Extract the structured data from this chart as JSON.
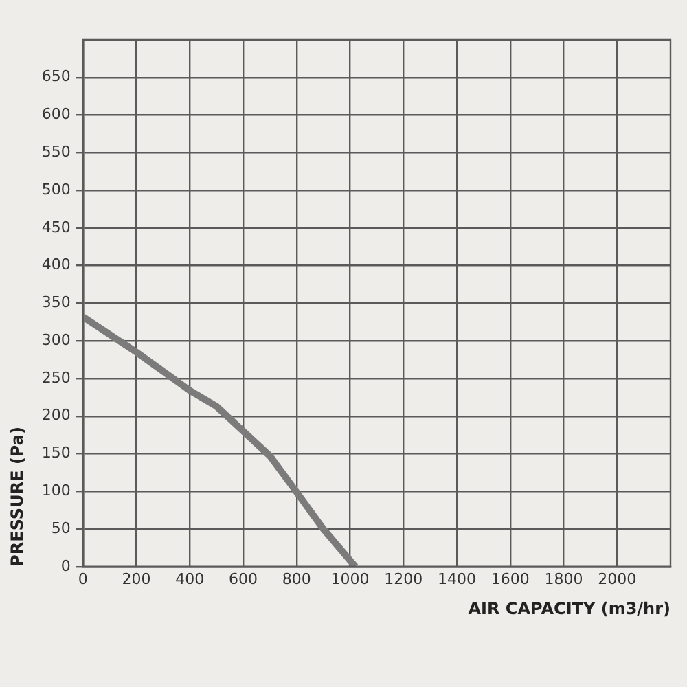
{
  "chart_data": {
    "type": "line",
    "xlabel": "AIR CAPACITY (m3/hr)",
    "ylabel": "PRESSURE (Pa)",
    "x": [
      0,
      200,
      400,
      500,
      600,
      700,
      800,
      900,
      1020
    ],
    "series": [
      {
        "color": "#7b7b7b",
        "values": [
          332,
          285,
          234,
          213,
          180,
          147,
          99,
          50,
          0
        ]
      }
    ],
    "xlim": [
      0,
      2200
    ],
    "xticks": [
      0,
      200,
      400,
      600,
      800,
      1000,
      1200,
      1400,
      1600,
      1800,
      2000
    ],
    "ylim": [
      0,
      700
    ],
    "yticks": [
      0,
      50,
      100,
      150,
      200,
      250,
      300,
      350,
      400,
      450,
      500,
      550,
      600,
      650
    ],
    "grid": true,
    "marker": "none",
    "line_style": "solid"
  }
}
